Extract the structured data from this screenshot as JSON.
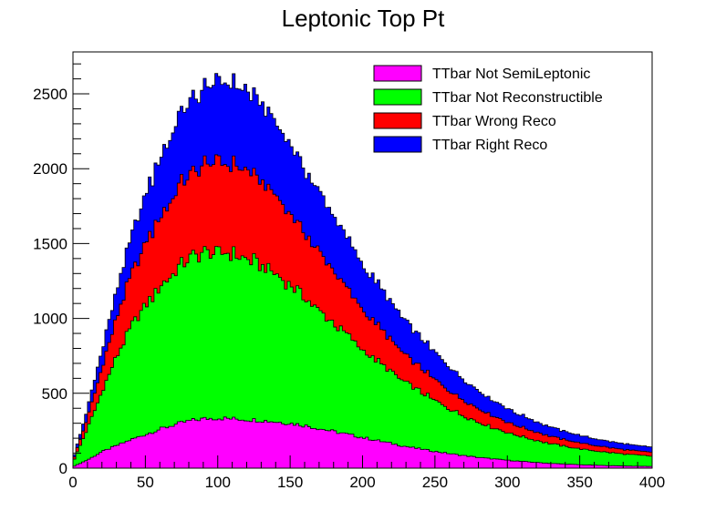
{
  "chart_data": {
    "type": "area",
    "stacked": true,
    "title": "Leptonic Top Pt",
    "xlabel": "",
    "ylabel": "",
    "xlim": [
      0,
      400
    ],
    "ylim": [
      0,
      2780
    ],
    "bin_width": 2,
    "xticks": [
      0,
      50,
      100,
      150,
      200,
      250,
      300,
      350,
      400
    ],
    "yticks": [
      0,
      500,
      1000,
      1500,
      2000,
      2500
    ],
    "legend_position": "top-right",
    "grid": false,
    "x": [
      0,
      10,
      20,
      30,
      40,
      50,
      60,
      70,
      80,
      90,
      100,
      110,
      120,
      130,
      140,
      150,
      160,
      170,
      180,
      190,
      200,
      210,
      220,
      230,
      240,
      250,
      260,
      270,
      280,
      290,
      300,
      310,
      320,
      330,
      340,
      350,
      360,
      370,
      380,
      390,
      400
    ],
    "series": [
      {
        "name": "TTbar Not SemiLeptonic",
        "color": "#ff00ff",
        "values": [
          10,
          55,
          110,
          150,
          190,
          225,
          260,
          290,
          315,
          330,
          335,
          330,
          325,
          320,
          310,
          300,
          285,
          265,
          245,
          225,
          205,
          185,
          165,
          145,
          128,
          112,
          97,
          84,
          72,
          62,
          53,
          45,
          38,
          32,
          27,
          23,
          20,
          17,
          15,
          13,
          12
        ]
      },
      {
        "name": "TTbar Not Reconstructible",
        "color": "#00ff00",
        "values": [
          30,
          210,
          400,
          590,
          750,
          865,
          950,
          1020,
          1080,
          1110,
          1110,
          1100,
          1080,
          1040,
          990,
          930,
          860,
          790,
          720,
          655,
          590,
          530,
          475,
          425,
          380,
          340,
          300,
          265,
          235,
          208,
          185,
          165,
          148,
          132,
          118,
          106,
          96,
          88,
          80,
          74,
          68
        ]
      },
      {
        "name": "TTbar Wrong Reco",
        "color": "#ff0000",
        "values": [
          10,
          70,
          160,
          255,
          345,
          415,
          470,
          520,
          560,
          580,
          600,
          600,
          580,
          560,
          520,
          470,
          430,
          390,
          350,
          305,
          270,
          235,
          210,
          185,
          160,
          140,
          122,
          106,
          92,
          80,
          70,
          62,
          55,
          49,
          44,
          40,
          36,
          33,
          30,
          28,
          26
        ]
      },
      {
        "name": "TTbar Right Reco",
        "color": "#0000ff",
        "values": [
          10,
          60,
          120,
          185,
          255,
          330,
          390,
          450,
          490,
          520,
          540,
          540,
          530,
          510,
          490,
          460,
          430,
          400,
          370,
          335,
          305,
          280,
          255,
          230,
          205,
          180,
          158,
          136,
          118,
          102,
          90,
          80,
          70,
          62,
          56,
          50,
          46,
          42,
          39,
          36,
          34
        ]
      }
    ]
  }
}
